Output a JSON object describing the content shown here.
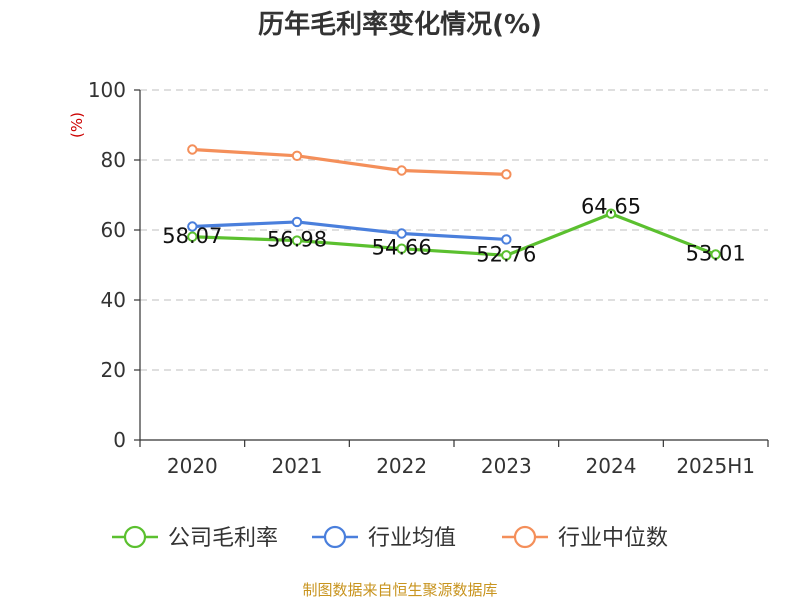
{
  "chart_data": {
    "type": "line",
    "title": "历年毛利率变化情况(%)",
    "ylabel": "(%)",
    "xlabel": "",
    "categories": [
      "2020",
      "2021",
      "2022",
      "2023",
      "2024",
      "2025H1"
    ],
    "ylim": [
      0,
      100
    ],
    "yticks": [
      0,
      20,
      40,
      60,
      80,
      100
    ],
    "grid": true,
    "legend_position": "bottom",
    "series": [
      {
        "name": "公司毛利率",
        "color": "#5bc02f",
        "values": [
          58.07,
          56.98,
          54.66,
          52.76,
          64.65,
          53.01
        ],
        "labels": [
          "58.07",
          "56.98",
          "54.66",
          "52.76",
          "64.65",
          "53.01"
        ]
      },
      {
        "name": "行业均值",
        "color": "#4a7fdc",
        "values": [
          61.0,
          62.3,
          59.0,
          57.3,
          null,
          null
        ]
      },
      {
        "name": "行业中位数",
        "color": "#f48f5a",
        "values": [
          83.0,
          81.2,
          77.0,
          75.9,
          null,
          null
        ]
      }
    ]
  },
  "source": "制图数据来自恒生聚源数据库"
}
